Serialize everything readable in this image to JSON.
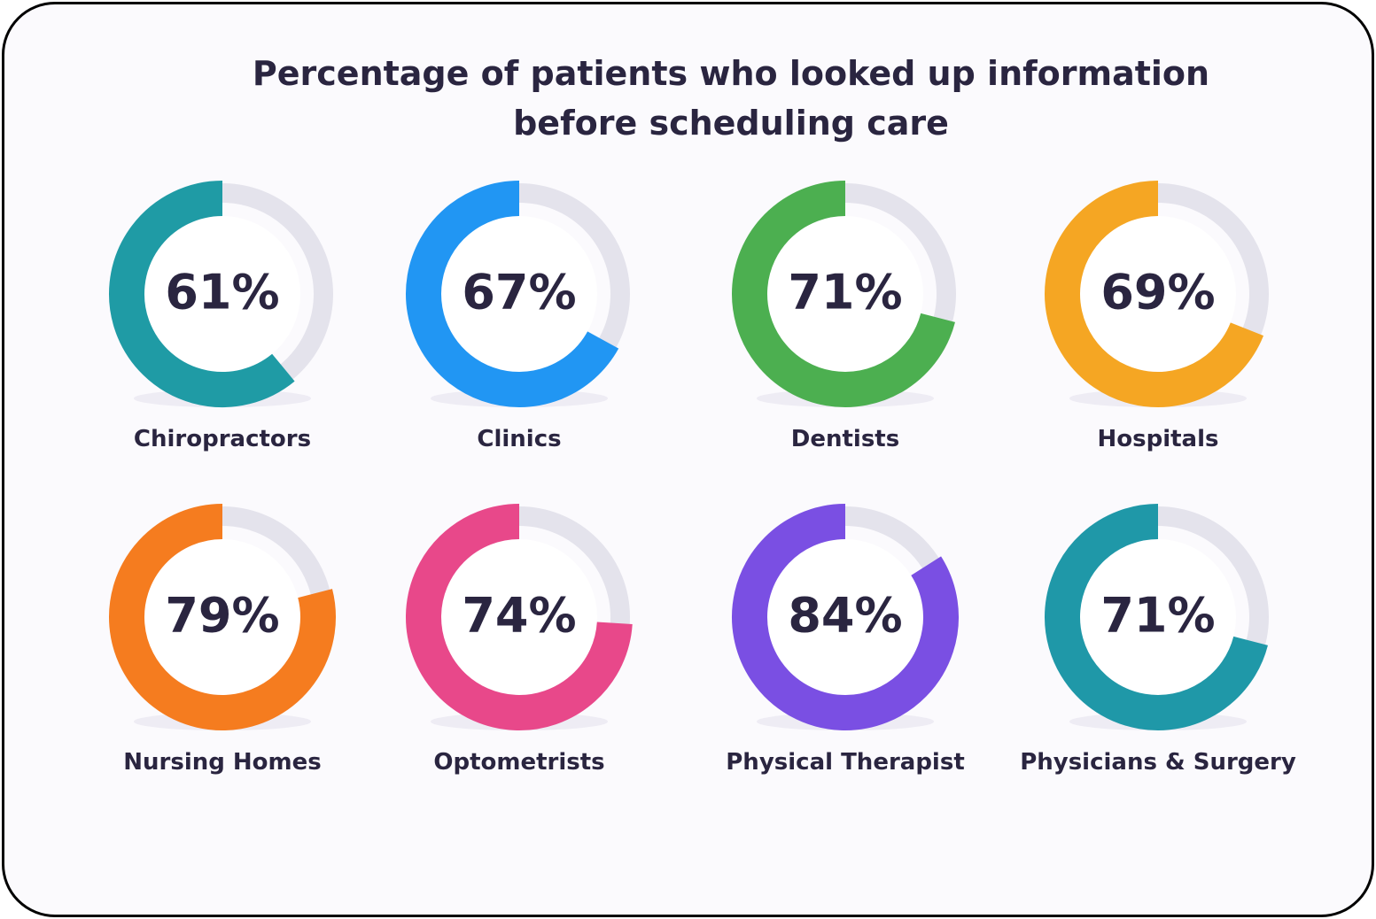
{
  "chart_data": {
    "type": "donut",
    "title": "Percentage of patients who looked up information before scheduling care",
    "categories": [
      "Chiropractors",
      "Clinics",
      "Dentists",
      "Hospitals",
      "Nursing Homes",
      "Optometrists",
      "Physical Therapist",
      "Physicians & Surgery"
    ],
    "values": [
      61,
      67,
      71,
      69,
      79,
      74,
      84,
      71
    ],
    "value_labels": [
      "61%",
      "67%",
      "71%",
      "69%",
      "79%",
      "74%",
      "84%",
      "71%"
    ],
    "colors": [
      "#1f9ba5",
      "#2196f3",
      "#4caf50",
      "#f5a623",
      "#f57c1f",
      "#e8488a",
      "#7a4fe3",
      "#1f98a8"
    ]
  }
}
